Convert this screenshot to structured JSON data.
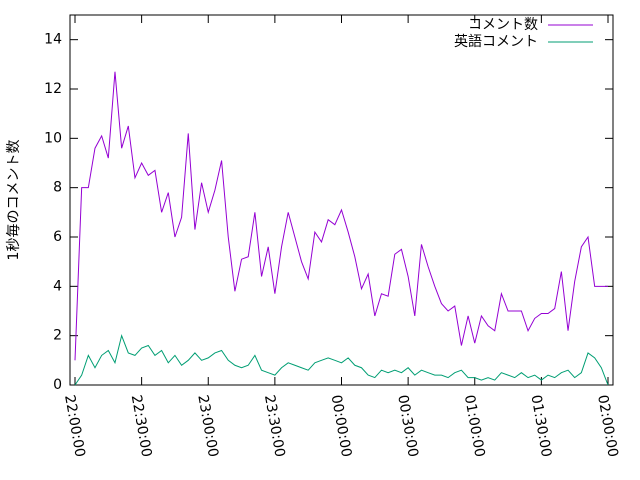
{
  "chart_data": {
    "type": "line",
    "ylabel": "1秒毎のコメント数",
    "x": [
      "22:00:00",
      "22:03:00",
      "22:06:00",
      "22:09:00",
      "22:12:00",
      "22:15:00",
      "22:18:00",
      "22:21:00",
      "22:24:00",
      "22:27:00",
      "22:30:00",
      "22:33:00",
      "22:36:00",
      "22:39:00",
      "22:42:00",
      "22:45:00",
      "22:48:00",
      "22:51:00",
      "22:54:00",
      "22:57:00",
      "23:00:00",
      "23:03:00",
      "23:06:00",
      "23:09:00",
      "23:12:00",
      "23:15:00",
      "23:18:00",
      "23:21:00",
      "23:24:00",
      "23:27:00",
      "23:30:00",
      "23:33:00",
      "23:36:00",
      "23:39:00",
      "23:42:00",
      "23:45:00",
      "23:48:00",
      "23:51:00",
      "23:54:00",
      "23:57:00",
      "00:00:00",
      "00:03:00",
      "00:06:00",
      "00:09:00",
      "00:12:00",
      "00:15:00",
      "00:18:00",
      "00:21:00",
      "00:24:00",
      "00:27:00",
      "00:30:00",
      "00:33:00",
      "00:36:00",
      "00:39:00",
      "00:42:00",
      "00:45:00",
      "00:48:00",
      "00:51:00",
      "00:54:00",
      "00:57:00",
      "01:00:00",
      "01:03:00",
      "01:06:00",
      "01:09:00",
      "01:12:00",
      "01:15:00",
      "01:18:00",
      "01:21:00",
      "01:24:00",
      "01:27:00",
      "01:30:00",
      "01:33:00",
      "01:36:00",
      "01:39:00",
      "01:42:00",
      "01:45:00",
      "01:48:00",
      "01:51:00",
      "01:54:00",
      "01:57:00",
      "02:00:00"
    ],
    "series": [
      {
        "name": "コメント数",
        "color": "#9400d3",
        "values": [
          1.0,
          8,
          8,
          9.6,
          10.1,
          9.2,
          12.7,
          9.6,
          10.5,
          8.4,
          9.0,
          8.5,
          8.7,
          7,
          7.8,
          6,
          6.8,
          10.2,
          6.3,
          8.2,
          7,
          7.9,
          9.1,
          6,
          3.8,
          5.1,
          5.2,
          7.0,
          4.4,
          5.6,
          3.7,
          5.6,
          7.0,
          6,
          5.0,
          4.3,
          6.2,
          5.8,
          6.7,
          6.5,
          7.1,
          6.2,
          5.2,
          3.9,
          4.5,
          2.8,
          3.7,
          3.6,
          5.3,
          5.5,
          4.4,
          2.8,
          5.7,
          4.8,
          4.0,
          3.3,
          3.0,
          3.2,
          1.6,
          2.8,
          1.7,
          2.8,
          2.4,
          2.2,
          3.7,
          3.0,
          3.0,
          3.0,
          2.2,
          2.7,
          2.9,
          2.9,
          3.1,
          4.6,
          2.2,
          4.2,
          5.6,
          6.0,
          4.0,
          4.0,
          4.0
        ]
      },
      {
        "name": "英語コメント",
        "color": "#009e73",
        "values": [
          0,
          0.4,
          1.2,
          0.7,
          1.2,
          1.4,
          0.9,
          2.0,
          1.3,
          1.2,
          1.5,
          1.6,
          1.2,
          1.4,
          0.9,
          1.2,
          0.8,
          1.0,
          1.3,
          1.0,
          1.1,
          1.3,
          1.4,
          1.0,
          0.8,
          0.7,
          0.8,
          1.2,
          0.6,
          0.5,
          0.4,
          0.7,
          0.9,
          0.8,
          0.7,
          0.6,
          0.9,
          1.0,
          1.1,
          1.0,
          0.9,
          1.1,
          0.8,
          0.7,
          0.4,
          0.3,
          0.6,
          0.5,
          0.6,
          0.5,
          0.7,
          0.4,
          0.6,
          0.5,
          0.4,
          0.4,
          0.3,
          0.5,
          0.6,
          0.3,
          0.3,
          0.2,
          0.3,
          0.2,
          0.5,
          0.4,
          0.3,
          0.5,
          0.3,
          0.4,
          0.2,
          0.4,
          0.3,
          0.5,
          0.6,
          0.3,
          0.5,
          1.3,
          1.1,
          0.7,
          0
        ]
      }
    ],
    "xlim": [
      "22:00:00",
      "02:00:00"
    ],
    "xticks": [
      "22:00:00",
      "22:30:00",
      "23:00:00",
      "23:30:00",
      "00:00:00",
      "00:30:00",
      "01:00:00",
      "01:30:00",
      "02:00:00"
    ],
    "ylim": [
      0,
      15
    ],
    "yticks": [
      0,
      2,
      4,
      6,
      8,
      10,
      12,
      14
    ],
    "legend": "top-right",
    "grid": false
  }
}
